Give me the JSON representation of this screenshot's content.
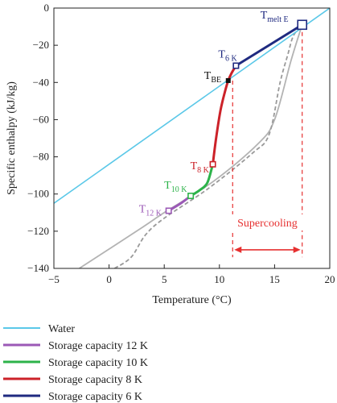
{
  "chart_data": {
    "type": "line",
    "xlabel": "Temperature (°C)",
    "ylabel": "Specific enthalpy (kJ/kg)",
    "xlim": [
      -5,
      20
    ],
    "ylim": [
      -140,
      0
    ],
    "xticks": [
      -5,
      0,
      5,
      10,
      15,
      20
    ],
    "yticks": [
      0,
      -20,
      -40,
      -60,
      -80,
      -100,
      -120,
      -140
    ],
    "colors": {
      "water": "#5bc8e8",
      "cap12": "#9b59b6",
      "cap10": "#2db34a",
      "cap8": "#cc2229",
      "cap6": "#1f2a80",
      "reference_solid": "#b3b3b3",
      "reference_dashed": "#9a9a9a",
      "supercooling": "#e63030"
    },
    "series": [
      {
        "name": "Water",
        "color": "#5bc8e8",
        "style": "solid",
        "x": [
          -5,
          20
        ],
        "y": [
          -105,
          0
        ]
      },
      {
        "name": "Storage capacity 12 K",
        "color": "#9b59b6",
        "style": "solid",
        "x": [
          5.4,
          6.5,
          7.4
        ],
        "y": [
          -109,
          -105,
          -101
        ]
      },
      {
        "name": "Storage capacity 10 K",
        "color": "#2db34a",
        "style": "solid",
        "x": [
          7.4,
          8.2,
          8.9,
          9.4
        ],
        "y": [
          -101,
          -98,
          -94,
          -84
        ]
      },
      {
        "name": "Storage capacity 8 K",
        "color": "#cc2229",
        "style": "solid",
        "x": [
          9.4,
          9.7,
          10.1,
          10.5,
          10.8,
          11.1,
          11.5
        ],
        "y": [
          -84,
          -70,
          -55,
          -45,
          -39,
          -35,
          -31
        ]
      },
      {
        "name": "Storage capacity 6 K",
        "color": "#1f2a80",
        "style": "solid",
        "x": [
          11.5,
          17.5
        ],
        "y": [
          -31,
          -9
        ]
      }
    ],
    "reference_curves": [
      {
        "color": "#b3b3b3",
        "style": "solid",
        "x": [
          -2.7,
          3.0,
          5.0,
          9.5,
          13.5,
          15.0,
          16.5,
          17.5
        ],
        "y": [
          -140,
          -118,
          -110,
          -93,
          -73,
          -60,
          -28,
          -9
        ]
      },
      {
        "color": "#9a9a9a",
        "style": "dashed",
        "x": [
          0.5,
          2.0,
          3.3,
          5.0,
          9.0,
          13.0,
          14.5,
          15.5,
          16.2,
          16.7,
          17.5
        ],
        "y": [
          -140,
          -134,
          -122,
          -113,
          -97,
          -78,
          -68,
          -40,
          -25,
          -15,
          -9
        ]
      }
    ],
    "markers": [
      {
        "label": "T",
        "sub": "12 K",
        "x": 5.4,
        "y": -109,
        "color": "#9b59b6",
        "shape": "open-square",
        "label_pos": "left"
      },
      {
        "label": "T",
        "sub": "10 K",
        "x": 7.4,
        "y": -101,
        "color": "#2db34a",
        "shape": "open-square",
        "label_pos": "above"
      },
      {
        "label": "T",
        "sub": "8 K",
        "x": 9.4,
        "y": -84,
        "color": "#cc2229",
        "shape": "open-square",
        "label_pos": "left"
      },
      {
        "label": "T",
        "sub": "BE",
        "x": 10.8,
        "y": -39,
        "color": "#111111",
        "shape": "filled-square",
        "label_pos": "left"
      },
      {
        "label": "T",
        "sub": "6 K",
        "x": 11.5,
        "y": -31,
        "color": "#1f2a80",
        "shape": "open-square",
        "label_pos": "above"
      },
      {
        "label": "T",
        "sub": "melt E",
        "x": 17.5,
        "y": -9,
        "color": "#1f2a80",
        "shape": "open-square-large",
        "label_pos": "above-left"
      }
    ],
    "annotations": [
      {
        "text": "Supercooling",
        "color": "#e63030",
        "arrow_x": [
          11.2,
          17.5
        ],
        "arrow_y": -130,
        "dashed_verticals": [
          {
            "x": 11.2,
            "y_from": -39,
            "y_to": -134
          },
          {
            "x": 17.5,
            "y_from": -9,
            "y_to": -134
          }
        ]
      }
    ],
    "legend": {
      "placement": "bottom-left",
      "entries": [
        "Water",
        "Storage capacity 12 K",
        "Storage capacity 10 K",
        "Storage capacity 8 K",
        "Storage capacity 6 K"
      ]
    }
  }
}
